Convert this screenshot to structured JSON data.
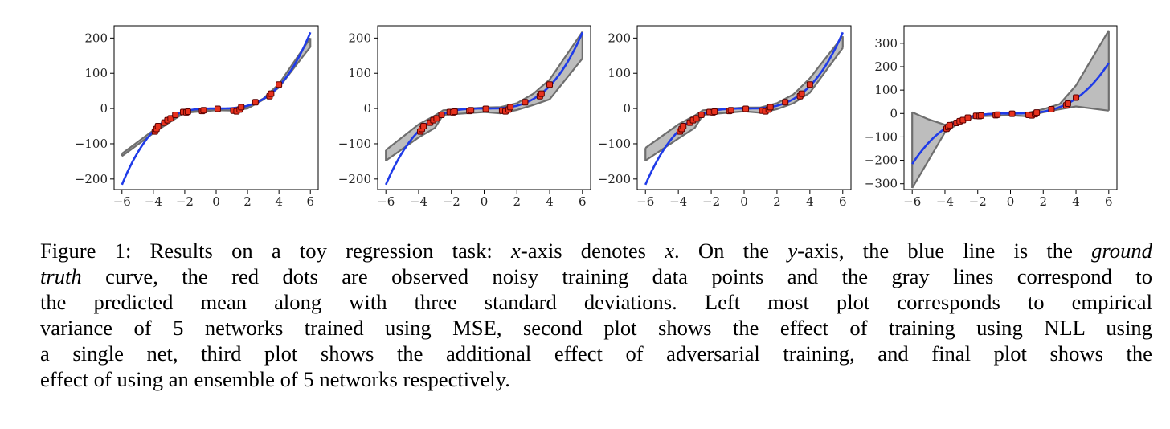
{
  "chart_data": [
    {
      "type": "line",
      "panel": "empirical variance of 5 networks trained using MSE",
      "xlim": [
        -6.5,
        6.5
      ],
      "ylim": [
        -230,
        235
      ],
      "xticks": [
        -6,
        -4,
        -2,
        0,
        2,
        4,
        6
      ],
      "xtick_labels": [
        "−6",
        "−4",
        "−2",
        "0",
        "2",
        "4",
        "6"
      ],
      "yticks": [
        -200,
        -100,
        0,
        100,
        200
      ],
      "ytick_labels": [
        "−200",
        "−100",
        "0",
        "100",
        "200"
      ],
      "grid": false,
      "band_lower": [
        [
          -6,
          -135
        ],
        [
          -4,
          -70
        ],
        [
          -3,
          -40
        ],
        [
          -2,
          -12
        ],
        [
          0,
          -5
        ],
        [
          1,
          -6
        ],
        [
          2,
          0
        ],
        [
          3,
          25
        ],
        [
          4,
          60
        ],
        [
          6,
          175
        ]
      ],
      "band_upper": [
        [
          -6,
          -128
        ],
        [
          -4,
          -62
        ],
        [
          -3,
          -35
        ],
        [
          -2,
          -8
        ],
        [
          0,
          0
        ],
        [
          1,
          0
        ],
        [
          2,
          6
        ],
        [
          3,
          28
        ],
        [
          4,
          70
        ],
        [
          6,
          200
        ]
      ]
    },
    {
      "type": "line",
      "panel": "training using NLL using a single net",
      "xlim": [
        -6.5,
        6.5
      ],
      "ylim": [
        -230,
        235
      ],
      "xticks": [
        -6,
        -4,
        -2,
        0,
        2,
        4,
        6
      ],
      "xtick_labels": [
        "−6",
        "−4",
        "−2",
        "0",
        "2",
        "4",
        "6"
      ],
      "yticks": [
        -200,
        -100,
        0,
        100,
        200
      ],
      "ytick_labels": [
        "−200",
        "−100",
        "0",
        "100",
        "200"
      ],
      "grid": false,
      "band_lower": [
        [
          -6,
          -148
        ],
        [
          -4,
          -82
        ],
        [
          -3,
          -55
        ],
        [
          -2.5,
          -18
        ],
        [
          0,
          -10
        ],
        [
          1,
          -14
        ],
        [
          2,
          -4
        ],
        [
          3,
          10
        ],
        [
          4,
          26
        ],
        [
          6,
          142
        ]
      ],
      "band_upper": [
        [
          -6,
          -118
        ],
        [
          -4,
          -45
        ],
        [
          -3,
          -20
        ],
        [
          -2.5,
          -5
        ],
        [
          0,
          3
        ],
        [
          1,
          4
        ],
        [
          2,
          15
        ],
        [
          3,
          42
        ],
        [
          4,
          82
        ],
        [
          6,
          218
        ]
      ]
    },
    {
      "type": "line",
      "panel": "additional effect of adversarial training",
      "xlim": [
        -6.5,
        6.5
      ],
      "ylim": [
        -230,
        235
      ],
      "xticks": [
        -6,
        -4,
        -2,
        0,
        2,
        4,
        6
      ],
      "xtick_labels": [
        "−6",
        "−4",
        "−2",
        "0",
        "2",
        "4",
        "6"
      ],
      "yticks": [
        -200,
        -100,
        0,
        100,
        200
      ],
      "ytick_labels": [
        "−200",
        "−100",
        "0",
        "100",
        "200"
      ],
      "grid": false,
      "band_lower": [
        [
          -6,
          -148
        ],
        [
          -4,
          -85
        ],
        [
          -3,
          -55
        ],
        [
          -2.5,
          -18
        ],
        [
          0,
          -8
        ],
        [
          1,
          -12
        ],
        [
          2,
          -2
        ],
        [
          3,
          15
        ],
        [
          4,
          45
        ],
        [
          6,
          172
        ]
      ],
      "band_upper": [
        [
          -6,
          -112
        ],
        [
          -4,
          -45
        ],
        [
          -3,
          -20
        ],
        [
          -2.5,
          -5
        ],
        [
          0,
          3
        ],
        [
          1,
          3
        ],
        [
          2,
          15
        ],
        [
          3,
          40
        ],
        [
          4,
          86
        ],
        [
          6,
          205
        ]
      ]
    },
    {
      "type": "line",
      "panel": "ensemble of 5 networks",
      "xlim": [
        -6.5,
        6.5
      ],
      "ylim": [
        -325,
        375
      ],
      "xticks": [
        -6,
        -4,
        -2,
        0,
        2,
        4,
        6
      ],
      "xtick_labels": [
        "−6",
        "−4",
        "−2",
        "0",
        "2",
        "4",
        "6"
      ],
      "yticks": [
        -300,
        -200,
        -100,
        0,
        100,
        200,
        300
      ],
      "ytick_labels": [
        "−300",
        "−200",
        "−100",
        "0",
        "100",
        "200",
        "300"
      ],
      "grid": false,
      "band_lower": [
        [
          -6,
          -318
        ],
        [
          -5,
          -200
        ],
        [
          -4,
          -80
        ],
        [
          -3,
          -35
        ],
        [
          -2,
          -12
        ],
        [
          0,
          -8
        ],
        [
          1,
          -12
        ],
        [
          2,
          5
        ],
        [
          3,
          18
        ],
        [
          4,
          30
        ],
        [
          6,
          12
        ]
      ],
      "band_upper": [
        [
          -6,
          5
        ],
        [
          -5,
          -25
        ],
        [
          -4,
          -48
        ],
        [
          -3,
          -22
        ],
        [
          -2,
          -5
        ],
        [
          0,
          3
        ],
        [
          1,
          2
        ],
        [
          2,
          18
        ],
        [
          3,
          40
        ],
        [
          4,
          120
        ],
        [
          6,
          355
        ]
      ]
    }
  ],
  "shared_data": {
    "ground_truth": "y = x^3",
    "observed_points": [
      [
        -3.9,
        -65
      ],
      [
        -3.8,
        -58
      ],
      [
        -3.7,
        -50
      ],
      [
        -3.3,
        -40
      ],
      [
        -3.1,
        -33
      ],
      [
        -2.9,
        -28
      ],
      [
        -2.6,
        -18
      ],
      [
        -2.1,
        -10
      ],
      [
        -1.9,
        -11
      ],
      [
        -1.8,
        -9
      ],
      [
        -0.9,
        -7
      ],
      [
        -0.8,
        -5
      ],
      [
        0.1,
        -1
      ],
      [
        1.1,
        -6
      ],
      [
        1.3,
        -8
      ],
      [
        1.5,
        -3
      ],
      [
        1.6,
        4
      ],
      [
        2.5,
        18
      ],
      [
        3.4,
        35
      ],
      [
        3.5,
        42
      ],
      [
        4.0,
        68
      ]
    ],
    "colors": {
      "truth": "#1f3be8",
      "band_fill": "#bdbdbd",
      "band_edge": "#6e6e6e",
      "point_fill": "#e8321e",
      "point_edge": "#5a0000"
    }
  },
  "caption": {
    "lines": [
      [
        "Figure 1: Results on a toy regression task: ",
        {
          "m": "x"
        },
        "-axis denotes ",
        {
          "m": "x"
        },
        ". On the ",
        {
          "m": "y"
        },
        "-axis, the blue line is the ",
        {
          "i": "ground"
        }
      ],
      [
        {
          "i": "truth"
        },
        " curve, the red dots are observed noisy training data points and the gray lines correspond to"
      ],
      [
        "the predicted mean along with three standard deviations. Left most plot corresponds to empirical"
      ],
      [
        "variance of 5 networks trained using MSE, second plot shows the effect of training using NLL using"
      ],
      [
        "a single net, third plot shows the additional effect of adversarial training, and final plot shows the"
      ],
      [
        "effect of using an ensemble of 5 networks respectively."
      ]
    ]
  }
}
